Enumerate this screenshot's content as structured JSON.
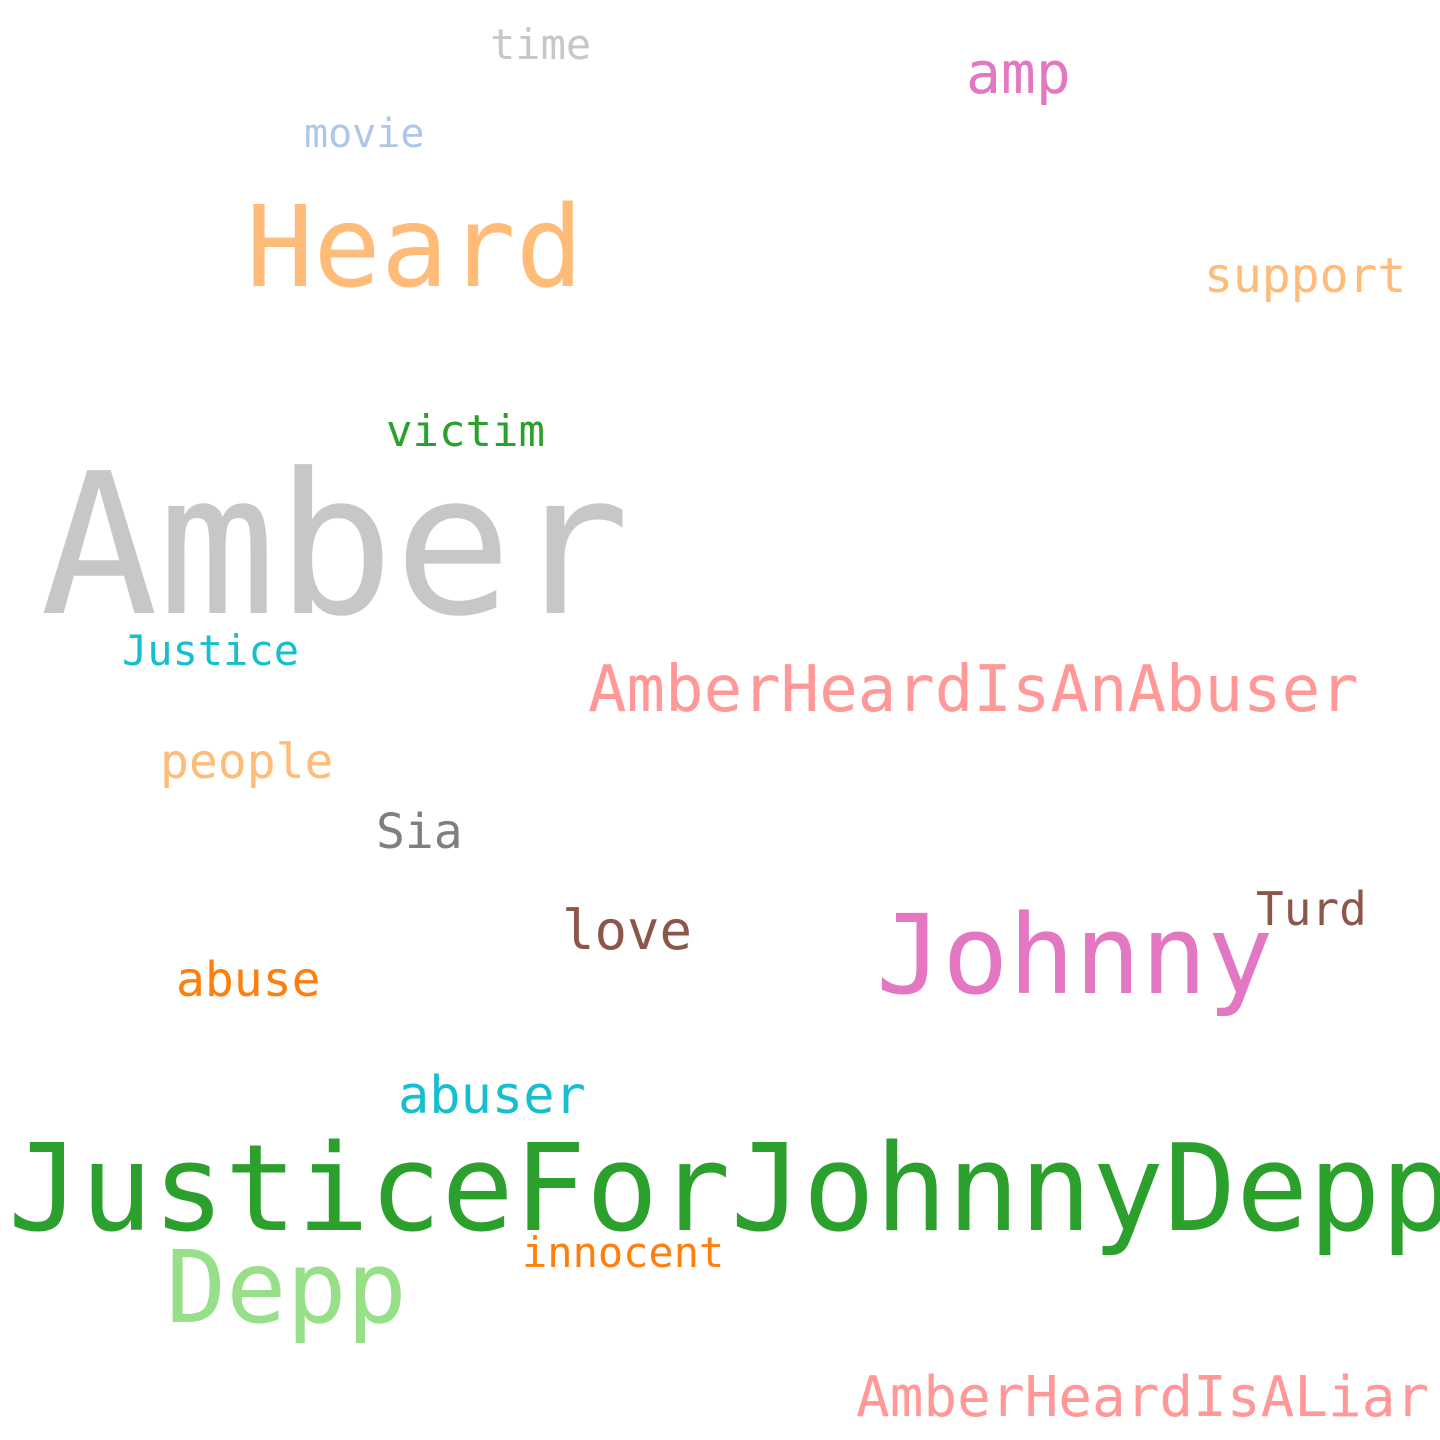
{
  "words": [
    {
      "id": "amber",
      "text": "Amber",
      "color": "#c7c7c7"
    },
    {
      "id": "jfjd",
      "text": "JusticeForJohnnyDepp",
      "color": "#2ca02c"
    },
    {
      "id": "heard",
      "text": "Heard",
      "color": "#ffbb78"
    },
    {
      "id": "johnny",
      "text": "Johnny",
      "color": "#e377c2"
    },
    {
      "id": "depp",
      "text": "Depp",
      "color": "#98df8a"
    },
    {
      "id": "ahiaa",
      "text": "AmberHeardIsAnAbuser",
      "color": "#ff9896"
    },
    {
      "id": "ahial",
      "text": "AmberHeardIsALiar",
      "color": "#ff9896"
    },
    {
      "id": "amp",
      "text": "amp",
      "color": "#e377c2"
    },
    {
      "id": "support",
      "text": "support",
      "color": "#ffbb78"
    },
    {
      "id": "love",
      "text": "love",
      "color": "#8c564b"
    },
    {
      "id": "abuser",
      "text": "abuser",
      "color": "#17becf"
    },
    {
      "id": "people",
      "text": "people",
      "color": "#ffbb78"
    },
    {
      "id": "abuse",
      "text": "abuse",
      "color": "#ff7f0e"
    },
    {
      "id": "sia",
      "text": "Sia",
      "color": "#7f7f7f"
    },
    {
      "id": "victim",
      "text": "victim",
      "color": "#2ca02c"
    },
    {
      "id": "justice",
      "text": "Justice",
      "color": "#17becf"
    },
    {
      "id": "turd",
      "text": "Turd",
      "color": "#8c564b"
    },
    {
      "id": "innocent",
      "text": "innocent",
      "color": "#ff7f0e"
    },
    {
      "id": "movie",
      "text": "movie",
      "color": "#aec7e8"
    },
    {
      "id": "time",
      "text": "time",
      "color": "#c7c7c7"
    }
  ]
}
